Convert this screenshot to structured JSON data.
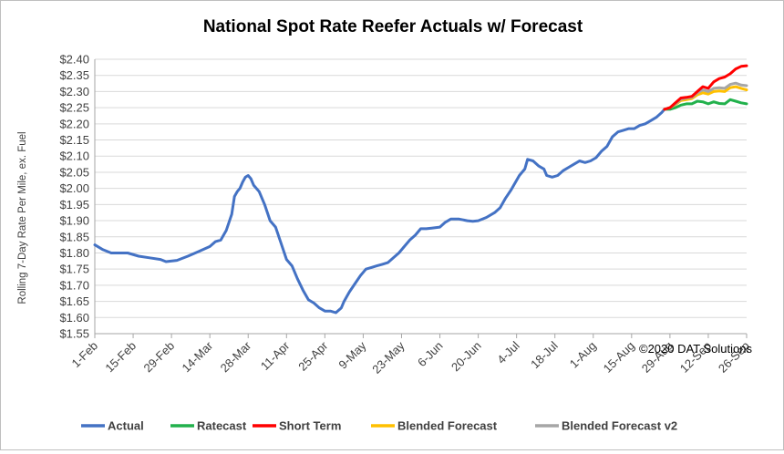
{
  "chart_data": {
    "type": "line",
    "title": "National Spot Rate Reefer Actuals w/ Forecast",
    "xlabel": "",
    "ylabel": "Rolling 7-Day Rate Per Mile, ex. Fuel",
    "ylim": [
      1.55,
      2.4
    ],
    "yticks": [
      "$1.55",
      "$1.60",
      "$1.65",
      "$1.70",
      "$1.75",
      "$1.80",
      "$1.85",
      "$1.90",
      "$1.95",
      "$2.00",
      "$2.05",
      "$2.10",
      "$2.15",
      "$2.20",
      "$2.25",
      "$2.30",
      "$2.35",
      "$2.40"
    ],
    "xticks": [
      {
        "label": "1-Feb",
        "day": 0
      },
      {
        "label": "15-Feb",
        "day": 14
      },
      {
        "label": "29-Feb",
        "day": 28
      },
      {
        "label": "14-Mar",
        "day": 42
      },
      {
        "label": "28-Mar",
        "day": 56
      },
      {
        "label": "11-Apr",
        "day": 70
      },
      {
        "label": "25-Apr",
        "day": 84
      },
      {
        "label": "9-May",
        "day": 98
      },
      {
        "label": "23-May",
        "day": 112
      },
      {
        "label": "6-Jun",
        "day": 126
      },
      {
        "label": "20-Jun",
        "day": 140
      },
      {
        "label": "4-Jul",
        "day": 154
      },
      {
        "label": "18-Jul",
        "day": 168
      },
      {
        "label": "1-Aug",
        "day": 182
      },
      {
        "label": "15-Aug",
        "day": 196
      },
      {
        "label": "29-Aug",
        "day": 210
      },
      {
        "label": "12-Sep",
        "day": 224
      },
      {
        "label": "26-Sep",
        "day": 238
      }
    ],
    "grid": true,
    "legend_position": "bottom",
    "annotation": "©2020 DAT Solutions",
    "series": [
      {
        "name": "Actual",
        "color": "#4472c4",
        "points": [
          [
            0,
            1.825
          ],
          [
            3,
            1.81
          ],
          [
            6,
            1.8
          ],
          [
            12,
            1.8
          ],
          [
            16,
            1.79
          ],
          [
            20,
            1.785
          ],
          [
            24,
            1.78
          ],
          [
            26,
            1.773
          ],
          [
            30,
            1.777
          ],
          [
            34,
            1.79
          ],
          [
            38,
            1.805
          ],
          [
            42,
            1.82
          ],
          [
            44,
            1.835
          ],
          [
            46,
            1.84
          ],
          [
            48,
            1.87
          ],
          [
            50,
            1.92
          ],
          [
            51,
            1.975
          ],
          [
            52,
            1.99
          ],
          [
            53,
            2.0
          ],
          [
            54,
            2.02
          ],
          [
            55,
            2.035
          ],
          [
            56,
            2.04
          ],
          [
            57,
            2.03
          ],
          [
            58,
            2.01
          ],
          [
            60,
            1.99
          ],
          [
            62,
            1.95
          ],
          [
            64,
            1.9
          ],
          [
            66,
            1.88
          ],
          [
            68,
            1.83
          ],
          [
            70,
            1.78
          ],
          [
            72,
            1.76
          ],
          [
            74,
            1.72
          ],
          [
            76,
            1.685
          ],
          [
            78,
            1.655
          ],
          [
            80,
            1.645
          ],
          [
            82,
            1.63
          ],
          [
            84,
            1.62
          ],
          [
            86,
            1.62
          ],
          [
            88,
            1.615
          ],
          [
            90,
            1.63
          ],
          [
            91,
            1.65
          ],
          [
            93,
            1.68
          ],
          [
            95,
            1.705
          ],
          [
            97,
            1.73
          ],
          [
            99,
            1.75
          ],
          [
            101,
            1.755
          ],
          [
            103,
            1.76
          ],
          [
            105,
            1.765
          ],
          [
            107,
            1.77
          ],
          [
            109,
            1.785
          ],
          [
            111,
            1.8
          ],
          [
            113,
            1.82
          ],
          [
            115,
            1.84
          ],
          [
            117,
            1.855
          ],
          [
            119,
            1.875
          ],
          [
            121,
            1.875
          ],
          [
            123,
            1.877
          ],
          [
            126,
            1.88
          ],
          [
            128,
            1.895
          ],
          [
            130,
            1.905
          ],
          [
            133,
            1.905
          ],
          [
            136,
            1.9
          ],
          [
            138,
            1.898
          ],
          [
            140,
            1.9
          ],
          [
            143,
            1.91
          ],
          [
            146,
            1.925
          ],
          [
            148,
            1.94
          ],
          [
            150,
            1.97
          ],
          [
            152,
            1.995
          ],
          [
            153,
            2.01
          ],
          [
            155,
            2.04
          ],
          [
            157,
            2.06
          ],
          [
            158,
            2.09
          ],
          [
            160,
            2.085
          ],
          [
            162,
            2.07
          ],
          [
            164,
            2.06
          ],
          [
            165,
            2.04
          ],
          [
            167,
            2.035
          ],
          [
            169,
            2.04
          ],
          [
            171,
            2.055
          ],
          [
            173,
            2.065
          ],
          [
            175,
            2.075
          ],
          [
            177,
            2.085
          ],
          [
            179,
            2.08
          ],
          [
            181,
            2.085
          ],
          [
            183,
            2.095
          ],
          [
            185,
            2.115
          ],
          [
            187,
            2.13
          ],
          [
            189,
            2.16
          ],
          [
            191,
            2.175
          ],
          [
            193,
            2.18
          ],
          [
            195,
            2.185
          ],
          [
            197,
            2.185
          ],
          [
            199,
            2.195
          ],
          [
            201,
            2.2
          ],
          [
            203,
            2.21
          ],
          [
            205,
            2.22
          ],
          [
            207,
            2.235
          ],
          [
            208,
            2.245
          ]
        ]
      },
      {
        "name": "Ratecast",
        "color": "#22b14c",
        "points": [
          [
            208,
            2.245
          ],
          [
            210,
            2.245
          ],
          [
            212,
            2.25
          ],
          [
            214,
            2.258
          ],
          [
            216,
            2.262
          ],
          [
            218,
            2.262
          ],
          [
            220,
            2.27
          ],
          [
            222,
            2.268
          ],
          [
            224,
            2.262
          ],
          [
            226,
            2.268
          ],
          [
            228,
            2.263
          ],
          [
            230,
            2.262
          ],
          [
            232,
            2.275
          ],
          [
            234,
            2.27
          ],
          [
            236,
            2.265
          ],
          [
            238,
            2.262
          ]
        ]
      },
      {
        "name": "Short Term",
        "color": "#ff0000",
        "points": [
          [
            208,
            2.245
          ],
          [
            210,
            2.25
          ],
          [
            212,
            2.265
          ],
          [
            214,
            2.28
          ],
          [
            216,
            2.282
          ],
          [
            218,
            2.285
          ],
          [
            220,
            2.3
          ],
          [
            222,
            2.315
          ],
          [
            224,
            2.31
          ],
          [
            226,
            2.33
          ],
          [
            228,
            2.34
          ],
          [
            230,
            2.345
          ],
          [
            232,
            2.355
          ],
          [
            234,
            2.37
          ],
          [
            236,
            2.378
          ],
          [
            238,
            2.38
          ]
        ]
      },
      {
        "name": "Blended Forecast",
        "color": "#ffc000",
        "points": [
          [
            208,
            2.245
          ],
          [
            210,
            2.25
          ],
          [
            212,
            2.26
          ],
          [
            214,
            2.272
          ],
          [
            216,
            2.275
          ],
          [
            218,
            2.278
          ],
          [
            220,
            2.29
          ],
          [
            222,
            2.296
          ],
          [
            224,
            2.292
          ],
          [
            226,
            2.3
          ],
          [
            228,
            2.302
          ],
          [
            230,
            2.3
          ],
          [
            232,
            2.312
          ],
          [
            234,
            2.315
          ],
          [
            236,
            2.31
          ],
          [
            238,
            2.305
          ]
        ]
      },
      {
        "name": "Blended Forecast v2",
        "color": "#a6a6a6",
        "points": [
          [
            208,
            2.245
          ],
          [
            210,
            2.25
          ],
          [
            212,
            2.262
          ],
          [
            214,
            2.276
          ],
          [
            216,
            2.28
          ],
          [
            218,
            2.282
          ],
          [
            220,
            2.296
          ],
          [
            222,
            2.305
          ],
          [
            224,
            2.3
          ],
          [
            226,
            2.31
          ],
          [
            228,
            2.312
          ],
          [
            230,
            2.31
          ],
          [
            232,
            2.322
          ],
          [
            234,
            2.326
          ],
          [
            236,
            2.32
          ],
          [
            238,
            2.318
          ]
        ]
      }
    ]
  }
}
